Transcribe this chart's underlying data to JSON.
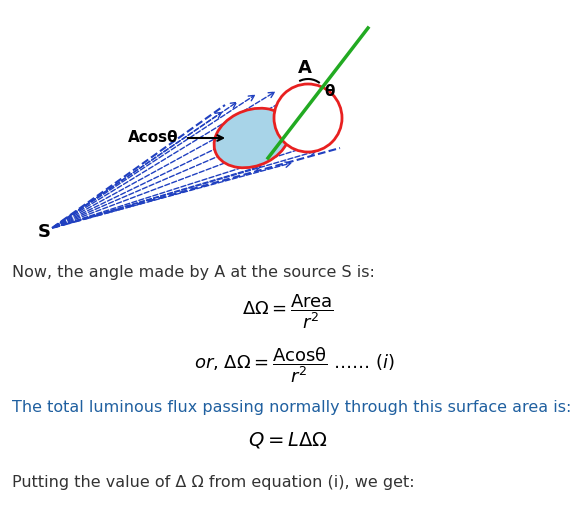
{
  "bg_color": "#ffffff",
  "text1": "Now, the angle made by A at the source S is:",
  "text1_color": "#333333",
  "text3": "The total luminous flux passing normally through this surface area is:",
  "text3_color": "#2060a0",
  "text4": "Putting the value of Δ Ω from equation (i), we get:",
  "text4_color": "#333333",
  "ellipse_red": "#e82020",
  "ellipse_fill": "#a8d4e8",
  "line_blue": "#2040c0",
  "line_green": "#22aa22",
  "label_A": "A",
  "label_S": "S",
  "label_Acostheta": "Acosθ",
  "label_theta": "θ",
  "diag_sx": 0.055,
  "diag_sy": 0.575,
  "diag_e1x": 0.445,
  "diag_e1y": 0.785,
  "diag_e2x": 0.505,
  "diag_e2y": 0.82
}
